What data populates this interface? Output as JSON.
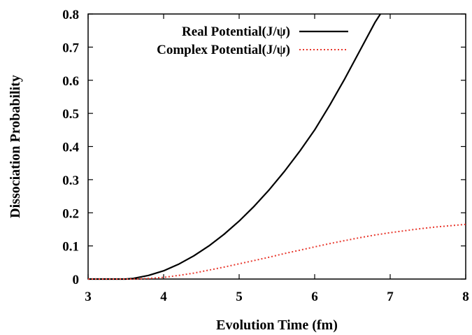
{
  "chart_data": {
    "type": "line",
    "title": "",
    "xlabel": "Evolution Time (fm)",
    "ylabel": "Dissociation Probability",
    "xlim": [
      3,
      8
    ],
    "ylim": [
      0,
      0.8
    ],
    "x_ticks": [
      "3",
      "4",
      "5",
      "6",
      "7",
      "8"
    ],
    "y_ticks": [
      "0",
      "0.1",
      "0.2",
      "0.3",
      "0.4",
      "0.5",
      "0.6",
      "0.7",
      "0.8"
    ],
    "grid": false,
    "legend_position": "top-right",
    "series": [
      {
        "name": "Real Potential(J/ψ)",
        "color": "#000000",
        "style": "solid",
        "x": [
          3.0,
          3.5,
          3.6,
          3.8,
          4.0,
          4.2,
          4.4,
          4.6,
          4.8,
          5.0,
          5.2,
          5.4,
          5.6,
          5.8,
          6.0,
          6.2,
          6.4,
          6.6,
          6.8,
          6.87
        ],
        "y": [
          0.0,
          0.0,
          0.002,
          0.011,
          0.025,
          0.045,
          0.07,
          0.1,
          0.135,
          0.175,
          0.22,
          0.27,
          0.325,
          0.385,
          0.45,
          0.525,
          0.605,
          0.69,
          0.775,
          0.8
        ]
      },
      {
        "name": "Complex Potential(J/ψ)",
        "color": "#e8372c",
        "style": "dotted",
        "x": [
          3.0,
          3.6,
          3.8,
          4.0,
          4.2,
          4.4,
          4.6,
          4.8,
          5.0,
          5.2,
          5.4,
          5.6,
          5.8,
          6.0,
          6.2,
          6.4,
          6.6,
          6.8,
          7.0,
          7.2,
          7.4,
          7.6,
          7.8,
          8.0
        ],
        "y": [
          0.0,
          0.0,
          0.002,
          0.005,
          0.011,
          0.018,
          0.027,
          0.036,
          0.046,
          0.056,
          0.066,
          0.077,
          0.087,
          0.097,
          0.107,
          0.116,
          0.125,
          0.133,
          0.14,
          0.146,
          0.152,
          0.157,
          0.161,
          0.165
        ]
      }
    ]
  }
}
